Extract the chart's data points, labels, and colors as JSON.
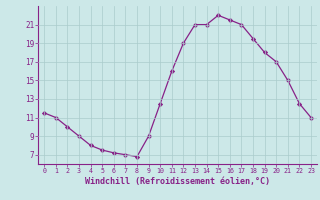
{
  "x": [
    0,
    1,
    2,
    3,
    4,
    5,
    6,
    7,
    8,
    9,
    10,
    11,
    12,
    13,
    14,
    15,
    16,
    17,
    18,
    19,
    20,
    21,
    22,
    23
  ],
  "y": [
    11.5,
    11.0,
    10.0,
    9.0,
    8.0,
    7.5,
    7.2,
    7.0,
    6.8,
    9.0,
    12.5,
    16.0,
    19.0,
    21.0,
    21.0,
    22.0,
    21.5,
    21.0,
    19.5,
    18.0,
    17.0,
    15.0,
    12.5,
    11.0
  ],
  "line_color": "#882288",
  "marker": "D",
  "marker_size": 2.2,
  "bg_color": "#cce8e8",
  "grid_color": "#aacccc",
  "xlabel": "Windchill (Refroidissement éolien,°C)",
  "xlabel_color": "#882288",
  "tick_color": "#882288",
  "axis_line_color": "#882288",
  "ylim": [
    6,
    23
  ],
  "xlim": [
    -0.5,
    23.5
  ],
  "yticks": [
    7,
    9,
    11,
    13,
    15,
    17,
    19,
    21
  ],
  "xticks": [
    0,
    1,
    2,
    3,
    4,
    5,
    6,
    7,
    8,
    9,
    10,
    11,
    12,
    13,
    14,
    15,
    16,
    17,
    18,
    19,
    20,
    21,
    22,
    23
  ],
  "xlabel_fontsize": 6.0,
  "xtick_fontsize": 4.8,
  "ytick_fontsize": 5.5
}
